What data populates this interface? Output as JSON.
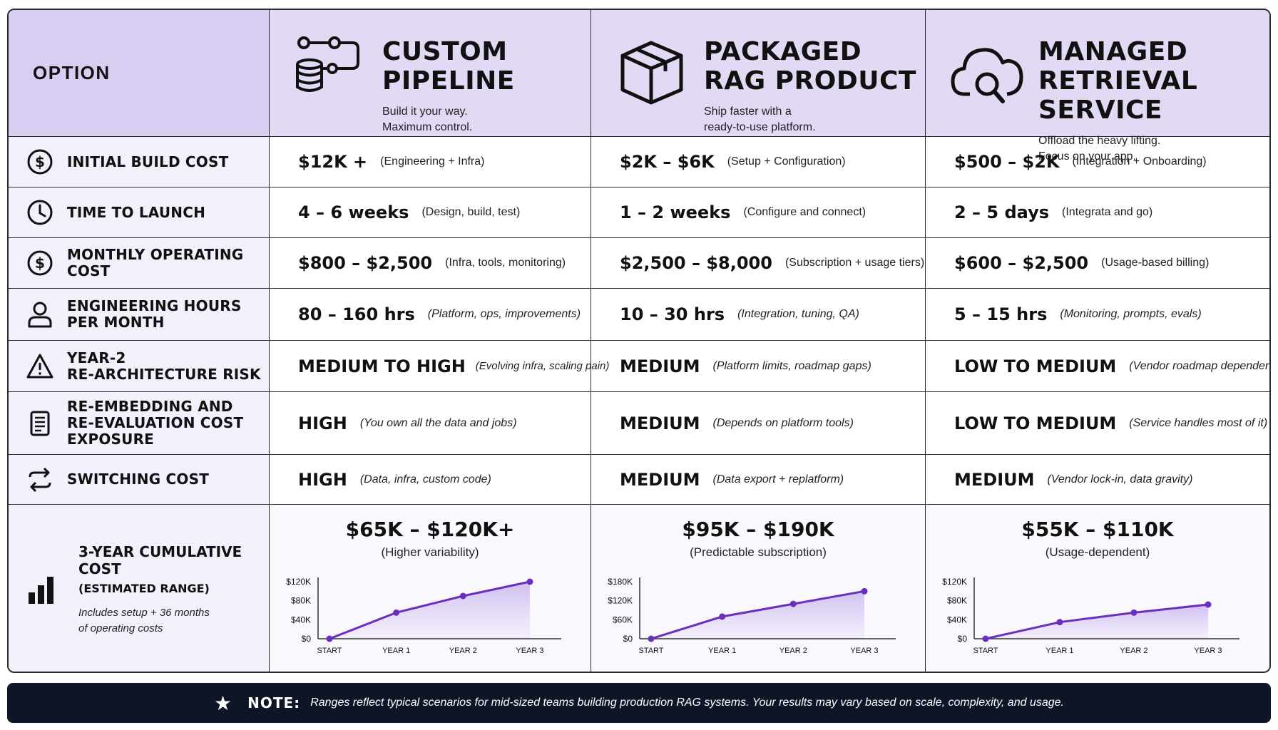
{
  "header": {
    "first_label": "OPTION",
    "options": [
      {
        "title_line1": "CUSTOM",
        "title_line2": "PIPELINE",
        "sub_line1": "Build it your way.",
        "sub_line2": "Maximum control.",
        "icon": "pipeline-database-icon"
      },
      {
        "title_line1": "PACKAGED",
        "title_line2": "RAG PRODUCT",
        "sub_line1": "Ship faster with a",
        "sub_line2": "ready-to-use platform.",
        "icon": "package-box-icon"
      },
      {
        "title_line1": "MANAGED",
        "title_line2": "RETRIEVAL SERVICE",
        "sub_line1": "Offload the heavy lifting.",
        "sub_line2": "Focus on your app.",
        "icon": "cloud-search-icon"
      }
    ]
  },
  "rows": [
    {
      "label_line1": "INITIAL BUILD COST",
      "label_line2": "",
      "label_line3": "",
      "icon": "dollar-circle-icon",
      "values": [
        {
          "main": "$12K +",
          "note": "(Engineering + Infra)"
        },
        {
          "main": "$2K – $6K",
          "note": "(Setup + Configuration)"
        },
        {
          "main": "$500 – $2K",
          "note": "(Integration + Onboarding)"
        }
      ]
    },
    {
      "label_line1": "TIME TO LAUNCH",
      "label_line2": "",
      "label_line3": "",
      "icon": "clock-icon",
      "values": [
        {
          "main": "4 – 6 weeks",
          "note": "(Design, build, test)"
        },
        {
          "main": "1 – 2 weeks",
          "note": "(Configure and connect)"
        },
        {
          "main": "2 – 5 days",
          "note": "(Integrata and go)"
        }
      ]
    },
    {
      "label_line1": "MONTHLY OPERATING COST",
      "label_line2": "",
      "label_line3": "",
      "icon": "dollar-circle-icon",
      "values": [
        {
          "main": "$800 – $2,500",
          "note": "(Infra, tools, monitoring)"
        },
        {
          "main": "$2,500 – $8,000",
          "note": "(Subscription + usage tiers)"
        },
        {
          "main": "$600 – $2,500",
          "note": "(Usage-based billing)"
        }
      ]
    },
    {
      "label_line1": "ENGINEERING HOURS",
      "label_line2": "PER MONTH",
      "label_line3": "",
      "icon": "person-icon",
      "values": [
        {
          "main": "80 – 160 hrs",
          "note": "(Platform, ops, improvements)"
        },
        {
          "main": "10 – 30 hrs",
          "note": "(Integration, tuning, QA)"
        },
        {
          "main": "5 – 15 hrs",
          "note": "(Monitoring, prompts, evals)"
        }
      ]
    },
    {
      "label_line1": "YEAR-2",
      "label_line2": "RE-ARCHITECTURE RISK",
      "label_line3": "",
      "icon": "warning-triangle-icon",
      "values": [
        {
          "main": "MEDIUM TO HIGH",
          "note": "(Evolving infra, scaling pain)"
        },
        {
          "main": "MEDIUM",
          "note": "(Platform limits, roadmap gaps)"
        },
        {
          "main": "LOW TO MEDIUM",
          "note": "(Vendor roadmap dependency)"
        }
      ]
    },
    {
      "label_line1": "RE-EMBEDDING AND",
      "label_line2": "RE-EVALUATION COST",
      "label_line3": "EXPOSURE",
      "icon": "document-list-icon",
      "values": [
        {
          "main": "HIGH",
          "note": "(You own all the data and jobs)"
        },
        {
          "main": "MEDIUM",
          "note": "(Depends on platform tools)"
        },
        {
          "main": "LOW TO MEDIUM",
          "note": "(Service handles most of it)"
        }
      ]
    },
    {
      "label_line1": "SWITCHING COST",
      "label_line2": "",
      "label_line3": "",
      "icon": "swap-arrows-icon",
      "values": [
        {
          "main": "HIGH",
          "note": "(Data, infra, custom code)"
        },
        {
          "main": "MEDIUM",
          "note": "(Data export + replatform)"
        },
        {
          "main": "MEDIUM",
          "note": "(Vendor lock-in, data gravity)"
        }
      ]
    }
  ],
  "cumulative": {
    "label_line1": "3-YEAR CUMULATIVE COST",
    "label_line2": "(ESTIMATED RANGE)",
    "desc_line1": "Includes setup + 36 months",
    "desc_line2": "of operating costs",
    "icon": "bar-chart-icon",
    "totals": [
      {
        "total": "$65K – $120K+",
        "note": "(Higher variability)"
      },
      {
        "total": "$95K – $190K",
        "note": "(Predictable subscription)"
      },
      {
        "total": "$55K – $110K",
        "note": "(Usage-dependent)"
      }
    ]
  },
  "chart_data": [
    {
      "type": "area",
      "x": [
        "START",
        "YEAR 1",
        "YEAR 2",
        "YEAR 3"
      ],
      "values": [
        0,
        55,
        90,
        120
      ],
      "yticks": [
        "$0",
        "$40K",
        "$80K",
        "$120K"
      ],
      "ylim": [
        0,
        120
      ],
      "color": "#6a2fbd"
    },
    {
      "type": "area",
      "x": [
        "START",
        "YEAR 1",
        "YEAR 2",
        "YEAR 3"
      ],
      "values": [
        0,
        70,
        110,
        150
      ],
      "yticks": [
        "$0",
        "$60K",
        "$120K",
        "$180K"
      ],
      "ylim": [
        0,
        180
      ],
      "color": "#6a2fbd"
    },
    {
      "type": "area",
      "x": [
        "START",
        "YEAR 1",
        "YEAR 2",
        "YEAR 3"
      ],
      "values": [
        0,
        35,
        55,
        72
      ],
      "yticks": [
        "$0",
        "$40K",
        "$80K",
        "$120K"
      ],
      "ylim": [
        0,
        120
      ],
      "color": "#6a2fbd"
    }
  ],
  "footer": {
    "label": "NOTE:",
    "text": "Ranges reflect typical scenarios for mid-sized teams building production RAG systems. Your results may vary based on scale, complexity, and usage."
  }
}
